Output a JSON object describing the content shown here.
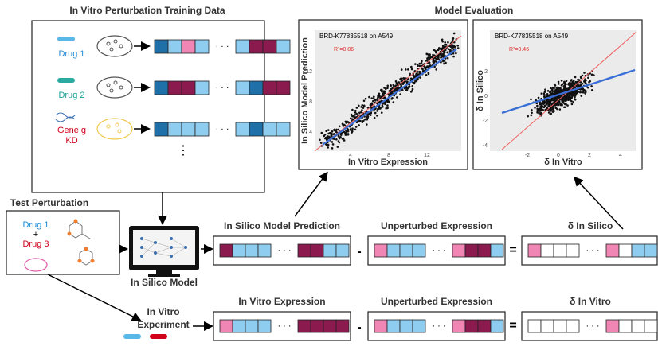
{
  "training": {
    "title": "In Vitro Perturbation Training Data",
    "rows": [
      {
        "label": "Drug 1"
      },
      {
        "label": "Drug 2"
      },
      {
        "label": "Gene g",
        "label2": "KD"
      }
    ],
    "more": "⋮"
  },
  "evaluation": {
    "title": "Model Evaluation",
    "plots": [
      {
        "title": "BRD-K77835518 on A549",
        "r2": "R²=0.86",
        "ylabel": "In Silico Model Prediction",
        "xlabel": "In Vitro Expression",
        "yticks": [
          "12",
          "8",
          "4"
        ],
        "xticks": [
          "4",
          "8",
          "12"
        ]
      },
      {
        "title": "BRD-K77835518 on A549",
        "r2": "R²=0.46",
        "ylabel": "δ In Silico",
        "xlabel": "δ In Vitro",
        "yticks": [
          "2",
          "0",
          "-2",
          "-4"
        ],
        "xticks": [
          "-2",
          "0",
          "2",
          "4"
        ]
      }
    ]
  },
  "test": {
    "title": "Test Perturbation",
    "drug_a": "Drug 1",
    "plus": "+",
    "drug_b": "Drug 3"
  },
  "model": {
    "label": "In Silico Model"
  },
  "experiment": {
    "label": "In Vitro",
    "label2": "Experiment"
  },
  "silico_row": {
    "labels": [
      "In Silico Model Prediction",
      "Unperturbed Expression",
      "δ In Silico"
    ],
    "minus": "-",
    "equals": "="
  },
  "vitro_row": {
    "labels": [
      "In Vitro Expression",
      "Unperturbed Expression",
      "δ In Vitro"
    ],
    "minus": "-",
    "equals": "="
  },
  "ellipsis": "· · ·"
}
